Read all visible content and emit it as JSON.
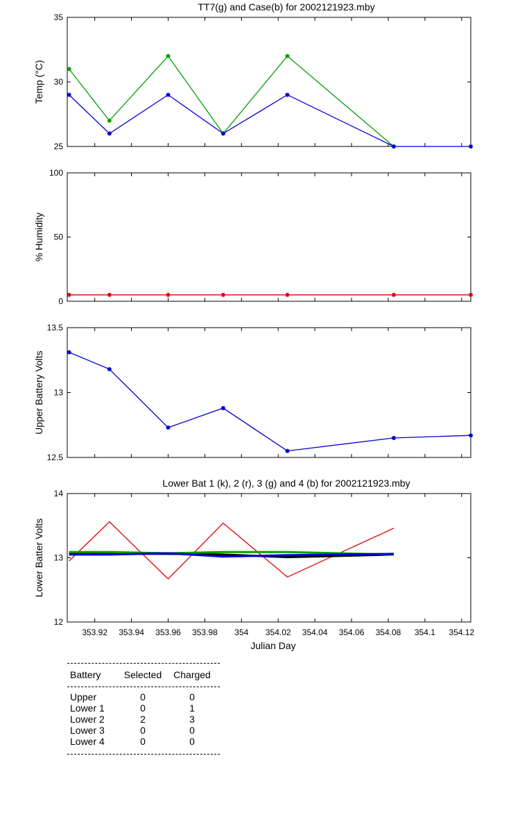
{
  "chart_data": [
    {
      "type": "line",
      "title": "TT7(g) and Case(b) for 2002121923.mby",
      "xlabel": "",
      "ylabel": "Temp  (°C)",
      "xlim": [
        353.905,
        354.125
      ],
      "ylim": [
        25,
        35
      ],
      "yticks": [
        "25",
        "30",
        "35"
      ],
      "grid": false,
      "series": [
        {
          "color": "#00a000",
          "x": [
            353.906,
            353.928,
            353.96,
            353.99,
            354.025,
            354.083
          ],
          "values": [
            31,
            27,
            32,
            26,
            32,
            25
          ]
        },
        {
          "color": "#0000d0",
          "x": [
            353.906,
            353.928,
            353.96,
            353.99,
            354.025,
            354.083,
            354.125
          ],
          "values": [
            29,
            26,
            29,
            26,
            29,
            25,
            25
          ]
        }
      ]
    },
    {
      "type": "line",
      "title": "",
      "xlabel": "",
      "ylabel": "% Humidity",
      "xlim": [
        353.905,
        354.125
      ],
      "ylim": [
        0,
        100
      ],
      "yticks": [
        "0",
        "50",
        "100"
      ],
      "grid": false,
      "series": [
        {
          "color": "#e00000",
          "x": [
            353.906,
            353.928,
            353.96,
            353.99,
            354.025,
            354.083,
            354.125
          ],
          "values": [
            5,
            5,
            5,
            5,
            5,
            5,
            5
          ]
        }
      ]
    },
    {
      "type": "line",
      "title": "",
      "xlabel": "",
      "ylabel": "Upper Battery Volts",
      "xlim": [
        353.905,
        354.125
      ],
      "ylim": [
        12.5,
        13.5
      ],
      "yticks": [
        "12.5",
        "13",
        "13.5"
      ],
      "grid": false,
      "series": [
        {
          "color": "#0000d0",
          "x": [
            353.906,
            353.928,
            353.96,
            353.99,
            354.025,
            354.083,
            354.125
          ],
          "values": [
            13.31,
            13.18,
            12.73,
            12.88,
            12.55,
            12.65,
            12.67
          ]
        }
      ]
    },
    {
      "type": "line",
      "title": "Lower Bat 1 (k), 2 (r), 3 (g) and 4 (b) for 2002121923.mby",
      "xlabel": "Julian Day",
      "ylabel": "Lower Batter Volts",
      "xlim": [
        353.905,
        354.125
      ],
      "ylim": [
        12,
        14
      ],
      "yticks": [
        "12",
        "13",
        "14"
      ],
      "xticks": [
        "353.92",
        "353.94",
        "353.96",
        "353.98",
        "354",
        "354.02",
        "354.04",
        "354.06",
        "354.08",
        "354.1",
        "354.12"
      ],
      "grid": false,
      "series": [
        {
          "color": "#e00000",
          "x": [
            353.906,
            353.928,
            353.96,
            353.99,
            354.025,
            354.083
          ],
          "values": [
            12.95,
            13.56,
            12.67,
            13.54,
            12.7,
            13.46
          ]
        },
        {
          "color": "#000000",
          "x": [
            353.906,
            353.928,
            353.96,
            353.99,
            354.025,
            354.083
          ],
          "values": [
            13.07,
            13.06,
            13.06,
            13.05,
            13.01,
            13.05
          ]
        },
        {
          "color": "#00a000",
          "x": [
            353.906,
            353.928,
            353.96,
            353.99,
            354.025,
            354.083
          ],
          "values": [
            13.09,
            13.09,
            13.07,
            13.09,
            13.09,
            13.05
          ]
        },
        {
          "color": "#0000d0",
          "x": [
            353.906,
            353.928,
            353.96,
            353.99,
            354.025,
            354.083
          ],
          "values": [
            13.05,
            13.05,
            13.07,
            13.02,
            13.04,
            13.06
          ]
        }
      ]
    }
  ],
  "battery_table": {
    "headers": [
      "Battery",
      "Selected",
      "Charged"
    ],
    "rows": [
      [
        "Upper",
        "0",
        "0"
      ],
      [
        "Lower 1",
        "0",
        "1"
      ],
      [
        "Lower 2",
        "2",
        "3"
      ],
      [
        "Lower 3",
        "0",
        "0"
      ],
      [
        "Lower 4",
        "0",
        "0"
      ]
    ]
  }
}
